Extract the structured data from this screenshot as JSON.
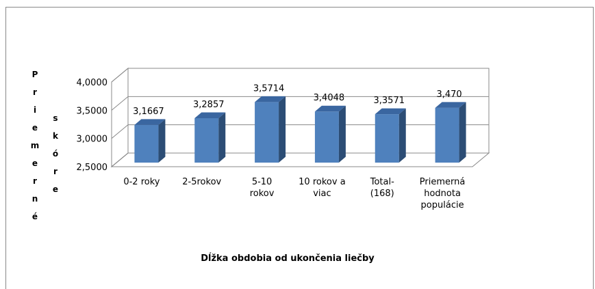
{
  "chart_data": {
    "type": "bar3d",
    "categories": [
      "0-2 roky",
      "2-5rokov",
      "5-10\nrokov",
      "10 rokov a\nviac",
      "Total-\n(168)",
      "Priemerná\nhodnota\npopulácie"
    ],
    "values": [
      3.1667,
      3.2857,
      3.5714,
      3.4048,
      3.3571,
      3.47
    ],
    "value_labels": [
      "3,1667",
      "3,2857",
      "3,5714",
      "3,4048",
      "3,3571",
      "3,470"
    ],
    "color": "#4f81bd",
    "ylim": [
      2.5,
      4
    ],
    "yticks": [
      {
        "value": 2.5,
        "label": "2,5000"
      },
      {
        "value": 3,
        "label": "3,0000"
      },
      {
        "value": 3.5,
        "label": "3,5000"
      },
      {
        "value": 4,
        "label": "4,0000"
      }
    ],
    "grid": true,
    "ylabel": [
      "Priemerné",
      "skóre"
    ],
    "xlabel": "Dĺžka obdobia od ukončenia liečby"
  }
}
